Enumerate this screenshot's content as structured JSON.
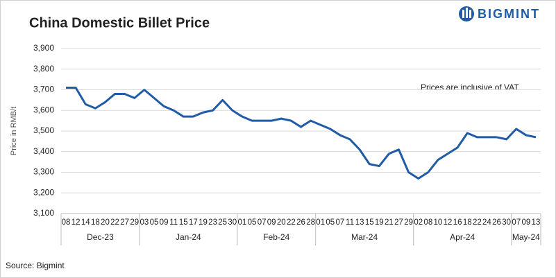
{
  "chart_data": {
    "type": "line",
    "title": "China Domestic Billet Price",
    "brand": "BIGMINT",
    "y_label": "Price in RMB/t",
    "annotation": "Prices are inclusive of VAT",
    "source": "Source: Bigmint",
    "groups": [
      {
        "name": "Dec-23",
        "categories": [
          "08",
          "12",
          "14",
          "18",
          "20",
          "22",
          "27",
          "29"
        ]
      },
      {
        "name": "Jan-24",
        "categories": [
          "03",
          "05",
          "09",
          "11",
          "15",
          "17",
          "19",
          "23",
          "25",
          "30"
        ]
      },
      {
        "name": "Feb-24",
        "categories": [
          "01",
          "05",
          "07",
          "09",
          "20",
          "22",
          "26",
          "28"
        ]
      },
      {
        "name": "Mar-24",
        "categories": [
          "01",
          "05",
          "07",
          "11",
          "13",
          "15",
          "19",
          "21",
          "27",
          "29"
        ]
      },
      {
        "name": "Apr-24",
        "categories": [
          "02",
          "08",
          "10",
          "12",
          "16",
          "18",
          "22",
          "24",
          "26",
          "30"
        ]
      },
      {
        "name": "May-24",
        "categories": [
          "07",
          "09",
          "13"
        ]
      }
    ],
    "series": [
      {
        "name": "Price",
        "color": "#1f5ba6",
        "values": [
          3710,
          3710,
          3630,
          3610,
          3640,
          3680,
          3680,
          3660,
          3700,
          3660,
          3620,
          3600,
          3570,
          3570,
          3590,
          3600,
          3650,
          3600,
          3570,
          3550,
          3550,
          3550,
          3560,
          3550,
          3520,
          3550,
          3530,
          3510,
          3480,
          3460,
          3410,
          3340,
          3330,
          3390,
          3410,
          3300,
          3270,
          3300,
          3360,
          3390,
          3420,
          3490,
          3470,
          3470,
          3470,
          3460,
          3510,
          3480,
          3470
        ]
      }
    ],
    "ylim": [
      3100,
      3900
    ],
    "yticks": [
      {
        "value": 3100,
        "label": "3,100"
      },
      {
        "value": 3200,
        "label": "3,200"
      },
      {
        "value": 3300,
        "label": "3,300"
      },
      {
        "value": 3400,
        "label": "3,400"
      },
      {
        "value": 3500,
        "label": "3,500"
      },
      {
        "value": 3600,
        "label": "3,600"
      },
      {
        "value": 3700,
        "label": "3,700"
      },
      {
        "value": 3800,
        "label": "3,800"
      },
      {
        "value": 3900,
        "label": "3,900"
      }
    ],
    "grid": true
  }
}
